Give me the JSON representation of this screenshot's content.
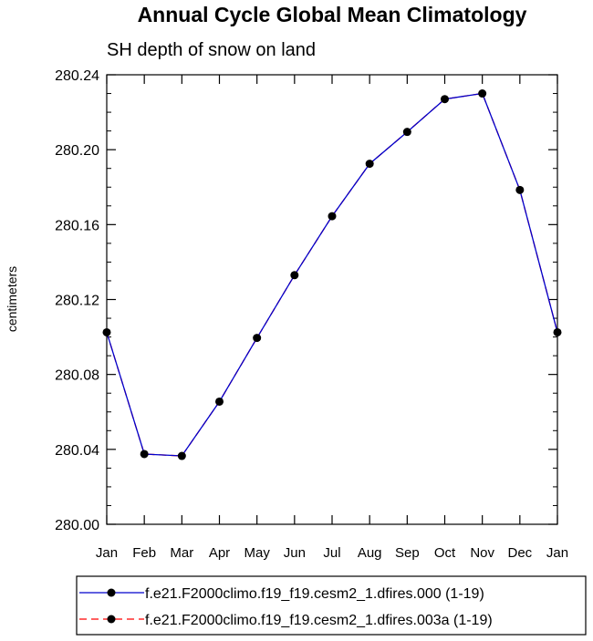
{
  "chart_data": {
    "type": "line",
    "title": "Annual Cycle Global Mean Climatology",
    "subtitle": "SH depth of snow on land",
    "ylabel": "centimeters",
    "xlabel": "",
    "ylim": [
      280.0,
      280.24
    ],
    "yticks": [
      "280.00",
      "280.04",
      "280.08",
      "280.12",
      "280.16",
      "280.20",
      "280.24"
    ],
    "categories": [
      "Jan",
      "Feb",
      "Mar",
      "Apr",
      "May",
      "Jun",
      "Jul",
      "Aug",
      "Sep",
      "Oct",
      "Nov",
      "Dec",
      "Jan"
    ],
    "grid": false,
    "legend_position": "bottom",
    "series": [
      {
        "name": "f.e21.F2000climo.f19_f19.cesm2_1.dfires.000 (1-19)",
        "color": "#0000cc",
        "dash": "solid",
        "values": [
          280.1025,
          280.0375,
          280.0365,
          280.0655,
          280.0995,
          280.133,
          280.1645,
          280.1925,
          280.2095,
          280.227,
          280.23,
          280.1785,
          280.1025
        ]
      },
      {
        "name": "f.e21.F2000climo.f19_f19.cesm2_1.dfires.003a (1-19)",
        "color": "#ff0000",
        "dash": "dashed",
        "values": [
          280.1025,
          280.0375,
          280.0365,
          280.0655,
          280.0995,
          280.133,
          280.1645,
          280.1925,
          280.2095,
          280.227,
          280.23,
          280.1785,
          280.1025
        ]
      }
    ]
  }
}
